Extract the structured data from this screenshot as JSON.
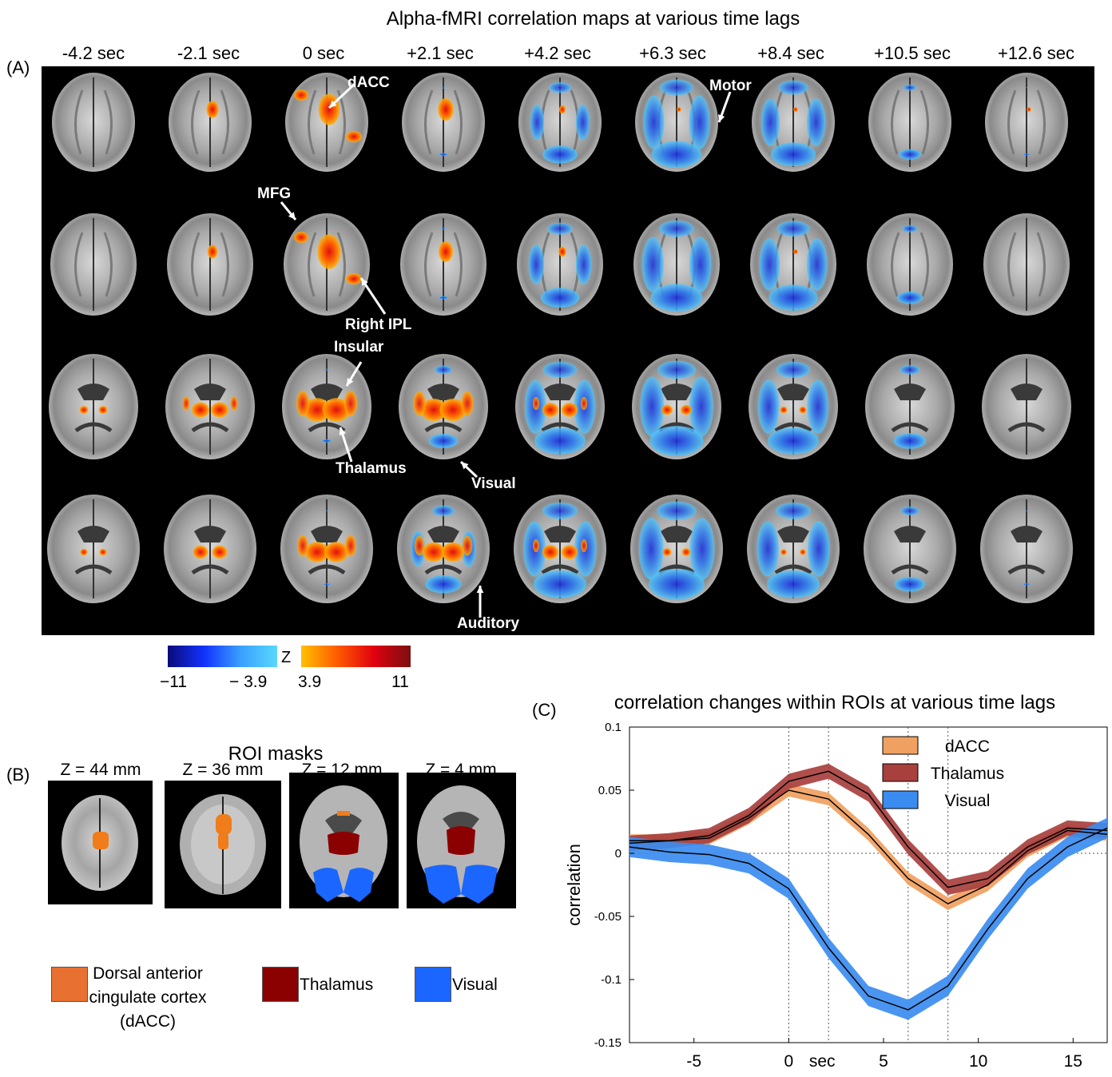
{
  "panel_a": {
    "letter": "(A)",
    "title": "Alpha-fMRI correlation maps at various time lags",
    "lags": [
      "-4.2 sec",
      "-2.1 sec",
      "0 sec",
      "+2.1 sec",
      "+4.2 sec",
      "+6.3 sec",
      "+8.4 sec",
      "+10.5 sec",
      "+12.6 sec"
    ],
    "annotations": {
      "dacc": "dACC",
      "motor": "Motor",
      "mfg": "MFG",
      "right_ipl": "Right IPL",
      "insular": "Insular",
      "thalamus": "Thalamus",
      "visual": "Visual",
      "auditory": "Auditory"
    },
    "colorbar": {
      "z_label": "Z",
      "neg_min": "−11",
      "neg_max": "− 3.9",
      "pos_min": "3.9",
      "pos_max": "11",
      "neg_colors": [
        "#0a0a7a",
        "#58d8ff"
      ],
      "pos_colors": [
        "#ffc000",
        "#7a1010"
      ]
    }
  },
  "panel_b": {
    "letter": "(B)",
    "title": "ROI masks",
    "slices": [
      "Z = 44 mm",
      "Z = 36 mm",
      "Z = 12 mm",
      "Z = 4 mm"
    ],
    "legend": [
      {
        "label": "Dorsal anterior cingulate cortex (dACC)",
        "lines": [
          "Dorsal anterior",
          "cingulate cortex",
          "(dACC)"
        ],
        "color": "#e87030"
      },
      {
        "label": "Thalamus",
        "color": "#8b0000"
      },
      {
        "label": "Visual",
        "color": "#1a66ff"
      }
    ]
  },
  "panel_c": {
    "letter": "(C)"
  },
  "chart_data": {
    "type": "line",
    "title": "correlation changes within ROIs at various time lags",
    "xlabel": "sec",
    "ylabel": "correlation",
    "xlim": [
      -8.4,
      16.8
    ],
    "ylim": [
      -0.15,
      0.1
    ],
    "xticks": [
      -5,
      0,
      5,
      10,
      15
    ],
    "xtick_labels": [
      "-5",
      "0",
      "5",
      "10",
      "15"
    ],
    "yticks": [
      -0.15,
      -0.1,
      -0.05,
      0,
      0.05,
      0.1
    ],
    "ytick_labels": [
      "-0.15",
      "-0.1",
      "-0.05",
      "0",
      "0.05",
      "0.1"
    ],
    "vlines": [
      0,
      2.1,
      6.3,
      8.4
    ],
    "hline": 0,
    "legend_position": "top-right",
    "x": [
      -8.4,
      -6.3,
      -4.2,
      -2.1,
      0,
      2.1,
      4.2,
      6.3,
      8.4,
      10.5,
      12.6,
      14.7,
      16.8
    ],
    "series": [
      {
        "name": "dACC",
        "color": "#f0a060",
        "values": [
          0.01,
          0.01,
          0.012,
          0.028,
          0.05,
          0.043,
          0.015,
          -0.02,
          -0.04,
          -0.025,
          0.002,
          0.018,
          0.015
        ],
        "band": 0.005
      },
      {
        "name": "Thalamus",
        "color": "#a8403e",
        "values": [
          0.008,
          0.01,
          0.014,
          0.03,
          0.057,
          0.065,
          0.047,
          0.005,
          -0.027,
          -0.02,
          0.005,
          0.02,
          0.018
        ],
        "band": 0.006
      },
      {
        "name": "Visual",
        "color": "#3b8cf0",
        "values": [
          0.005,
          0.001,
          -0.001,
          -0.008,
          -0.028,
          -0.075,
          -0.113,
          -0.124,
          -0.105,
          -0.06,
          -0.02,
          0.005,
          0.02
        ],
        "band": 0.008
      }
    ]
  }
}
